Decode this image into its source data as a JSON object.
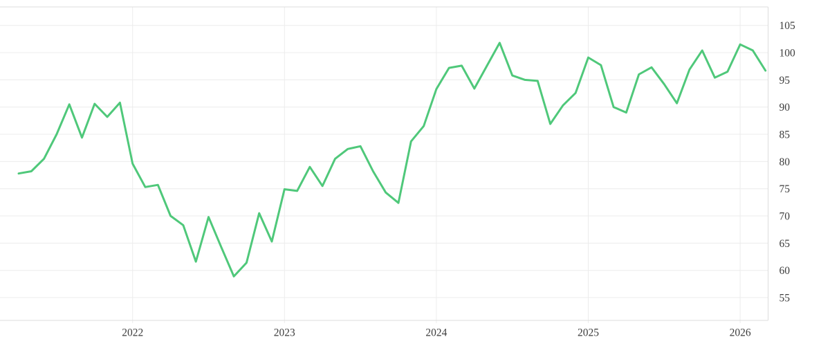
{
  "chart_data": {
    "type": "line",
    "title": "",
    "xlabel": "",
    "ylabel": "",
    "legend": null,
    "grid": true,
    "ylim": [
      50.8,
      108.4
    ],
    "y_ticks": [
      105,
      100,
      95,
      90,
      85,
      80,
      75,
      70,
      65,
      60,
      55
    ],
    "x_tick_labels": [
      "2022",
      "2023",
      "2024",
      "2025",
      "2026"
    ],
    "x": [
      "2021-04",
      "2021-05",
      "2021-06",
      "2021-07",
      "2021-08",
      "2021-09",
      "2021-10",
      "2021-11",
      "2021-12",
      "2022-01",
      "2022-02",
      "2022-03",
      "2022-04",
      "2022-05",
      "2022-06",
      "2022-07",
      "2022-08",
      "2022-09",
      "2022-10",
      "2022-11",
      "2022-12",
      "2023-01",
      "2023-02",
      "2023-03",
      "2023-04",
      "2023-05",
      "2023-06",
      "2023-07",
      "2023-08",
      "2023-09",
      "2023-10",
      "2023-11",
      "2023-12",
      "2024-01",
      "2024-02",
      "2024-03",
      "2024-04",
      "2024-05",
      "2024-06",
      "2024-07",
      "2024-08",
      "2024-09",
      "2024-10",
      "2024-11",
      "2024-12",
      "2025-01",
      "2025-02",
      "2025-03",
      "2025-04",
      "2025-05",
      "2025-06",
      "2025-07",
      "2025-08",
      "2025-09",
      "2025-10",
      "2025-11",
      "2025-12",
      "2026-01",
      "2026-02",
      "2026-03"
    ],
    "values": [
      77.8,
      78.2,
      80.5,
      85.0,
      90.5,
      84.4,
      90.6,
      88.2,
      90.8,
      79.6,
      75.3,
      75.7,
      70.0,
      68.3,
      61.6,
      69.8,
      64.3,
      58.9,
      61.4,
      70.5,
      65.3,
      74.9,
      74.6,
      79.0,
      75.5,
      80.5,
      82.3,
      82.8,
      78.2,
      74.3,
      72.4,
      83.7,
      86.5,
      93.3,
      97.2,
      97.6,
      93.4,
      97.6,
      101.8,
      95.8,
      95.0,
      94.8,
      86.9,
      90.3,
      92.6,
      99.1,
      97.7,
      90.0,
      89.0,
      96.0,
      97.3,
      94.2,
      90.7,
      96.9,
      100.4,
      95.4,
      96.5,
      101.5,
      100.4,
      96.7
    ],
    "colors": {
      "line": "#4fc87a",
      "gridline": "#ececec",
      "border": "#dcdcdc",
      "label": "#3c3c3c",
      "background": "#ffffff"
    }
  }
}
